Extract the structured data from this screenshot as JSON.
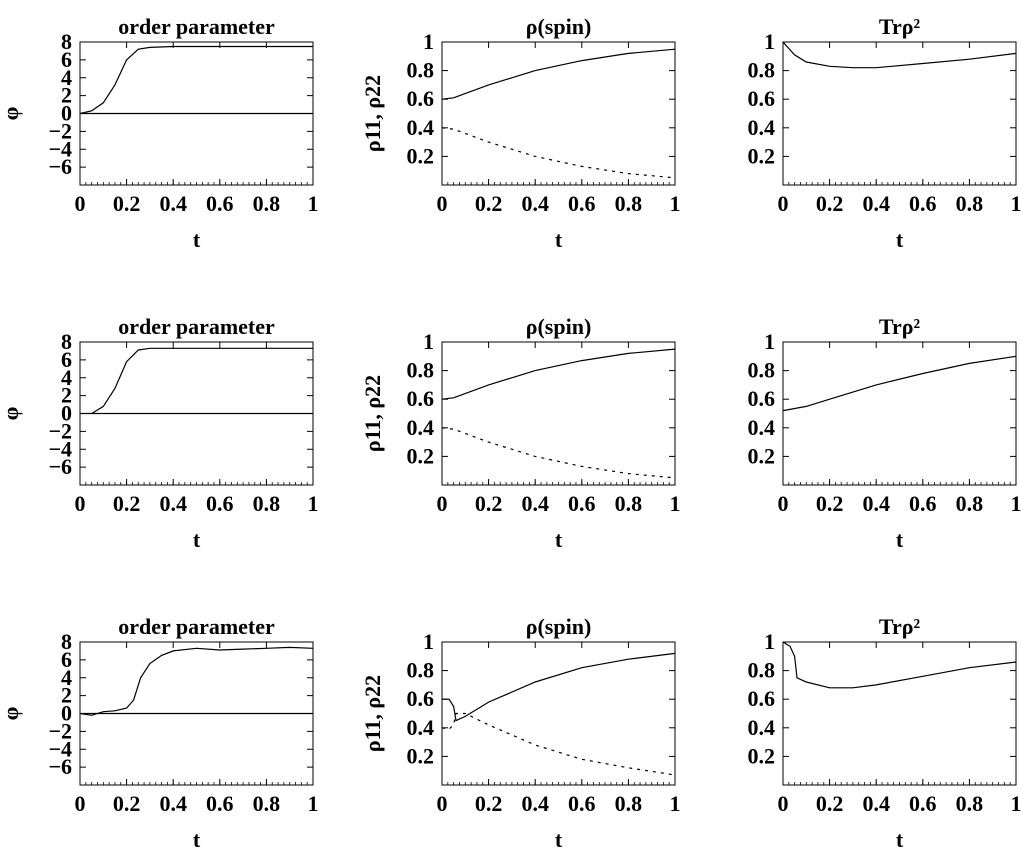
{
  "chart_data": [
    {
      "type": "line",
      "title": "order parameter",
      "xlabel": "t",
      "ylabel": "φ",
      "xlim": [
        0,
        1
      ],
      "ylim": [
        -8,
        8
      ],
      "grid": false,
      "xticks": [
        "0",
        "0.2",
        "0.4",
        "0.6",
        "0.8",
        "1"
      ],
      "yticks": [
        "8",
        "6",
        "4",
        "2",
        "0",
        "−2",
        "−4",
        "−6"
      ],
      "series": [
        {
          "style": "solid",
          "x": [
            0,
            0.05,
            0.1,
            0.15,
            0.2,
            0.25,
            0.3,
            0.4,
            1
          ],
          "y": [
            0,
            0.3,
            1.2,
            3.2,
            6.0,
            7.2,
            7.4,
            7.5,
            7.5
          ]
        },
        {
          "style": "solid",
          "x": [
            0,
            1
          ],
          "y": [
            0,
            0
          ]
        }
      ]
    },
    {
      "type": "line",
      "title": "ρ(spin)",
      "xlabel": "t",
      "ylabel": "ρ11, ρ22",
      "xlim": [
        0,
        1
      ],
      "ylim": [
        0,
        1
      ],
      "grid": false,
      "xticks": [
        "0",
        "0.2",
        "0.4",
        "0.6",
        "0.8",
        "1"
      ],
      "yticks": [
        "1",
        "0.8",
        "0.6",
        "0.4",
        "0.2"
      ],
      "series": [
        {
          "style": "solid",
          "x": [
            0,
            0.05,
            0.2,
            0.4,
            0.6,
            0.8,
            1
          ],
          "y": [
            0.6,
            0.61,
            0.7,
            0.8,
            0.87,
            0.92,
            0.95
          ]
        },
        {
          "style": "dashed",
          "x": [
            0,
            0.05,
            0.2,
            0.4,
            0.6,
            0.8,
            1
          ],
          "y": [
            0.4,
            0.39,
            0.3,
            0.2,
            0.13,
            0.08,
            0.05
          ]
        }
      ]
    },
    {
      "type": "line",
      "title": "Trρ²",
      "xlabel": "t",
      "ylabel": "",
      "xlim": [
        0,
        1
      ],
      "ylim": [
        0,
        1
      ],
      "grid": false,
      "xticks": [
        "0",
        "0.2",
        "0.4",
        "0.6",
        "0.8",
        "1"
      ],
      "yticks": [
        "1",
        "0.8",
        "0.6",
        "0.4",
        "0.2"
      ],
      "series": [
        {
          "style": "solid",
          "x": [
            0,
            0.05,
            0.1,
            0.2,
            0.3,
            0.4,
            0.6,
            0.8,
            1
          ],
          "y": [
            1.0,
            0.91,
            0.86,
            0.83,
            0.82,
            0.82,
            0.85,
            0.88,
            0.92
          ]
        }
      ]
    },
    {
      "type": "line",
      "title": "order parameter",
      "xlabel": "t",
      "ylabel": "φ",
      "xlim": [
        0,
        1
      ],
      "ylim": [
        -8,
        8
      ],
      "grid": false,
      "xticks": [
        "0",
        "0.2",
        "0.4",
        "0.6",
        "0.8",
        "1"
      ],
      "yticks": [
        "8",
        "6",
        "4",
        "2",
        "0",
        "−2",
        "−4",
        "−6"
      ],
      "series": [
        {
          "style": "solid",
          "x": [
            0.05,
            0.1,
            0.15,
            0.2,
            0.25,
            0.3,
            0.4,
            1
          ],
          "y": [
            0,
            0.8,
            2.8,
            5.8,
            7.1,
            7.3,
            7.3,
            7.3
          ]
        },
        {
          "style": "solid",
          "x": [
            0,
            1
          ],
          "y": [
            0,
            0
          ]
        }
      ]
    },
    {
      "type": "line",
      "title": "ρ(spin)",
      "xlabel": "t",
      "ylabel": "ρ11, ρ22",
      "xlim": [
        0,
        1
      ],
      "ylim": [
        0,
        1
      ],
      "grid": false,
      "xticks": [
        "0",
        "0.2",
        "0.4",
        "0.6",
        "0.8",
        "1"
      ],
      "yticks": [
        "1",
        "0.8",
        "0.6",
        "0.4",
        "0.2"
      ],
      "series": [
        {
          "style": "solid",
          "x": [
            0,
            0.05,
            0.2,
            0.4,
            0.6,
            0.8,
            1
          ],
          "y": [
            0.6,
            0.61,
            0.7,
            0.8,
            0.87,
            0.92,
            0.95
          ]
        },
        {
          "style": "dashed",
          "x": [
            0,
            0.05,
            0.2,
            0.4,
            0.6,
            0.8,
            1
          ],
          "y": [
            0.4,
            0.39,
            0.3,
            0.2,
            0.13,
            0.08,
            0.05
          ]
        }
      ]
    },
    {
      "type": "line",
      "title": "Trρ²",
      "xlabel": "t",
      "ylabel": "",
      "xlim": [
        0,
        1
      ],
      "ylim": [
        0,
        1
      ],
      "grid": false,
      "xticks": [
        "0",
        "0.2",
        "0.4",
        "0.6",
        "0.8",
        "1"
      ],
      "yticks": [
        "1",
        "0.8",
        "0.6",
        "0.4",
        "0.2"
      ],
      "series": [
        {
          "style": "solid",
          "x": [
            0,
            0.1,
            0.2,
            0.4,
            0.6,
            0.8,
            1
          ],
          "y": [
            0.52,
            0.55,
            0.6,
            0.7,
            0.78,
            0.85,
            0.9
          ]
        }
      ]
    },
    {
      "type": "line",
      "title": "order parameter",
      "xlabel": "t",
      "ylabel": "φ",
      "xlim": [
        0,
        1
      ],
      "ylim": [
        -8,
        8
      ],
      "grid": false,
      "xticks": [
        "0",
        "0.2",
        "0.4",
        "0.6",
        "0.8",
        "1"
      ],
      "yticks": [
        "8",
        "6",
        "4",
        "2",
        "0",
        "−2",
        "−4",
        "−6"
      ],
      "series": [
        {
          "style": "solid",
          "x": [
            0,
            0.05,
            0.1,
            0.15,
            0.2,
            0.23,
            0.26,
            0.3,
            0.35,
            0.4,
            0.5,
            0.6,
            0.7,
            0.8,
            0.9,
            1
          ],
          "y": [
            0,
            -0.2,
            0.2,
            0.3,
            0.6,
            1.5,
            4.0,
            5.6,
            6.5,
            7.0,
            7.3,
            7.1,
            7.2,
            7.3,
            7.4,
            7.3
          ]
        },
        {
          "style": "solid",
          "x": [
            0,
            1
          ],
          "y": [
            0,
            0
          ]
        }
      ]
    },
    {
      "type": "line",
      "title": "ρ(spin)",
      "xlabel": "t",
      "ylabel": "ρ11, ρ22",
      "xlim": [
        0,
        1
      ],
      "ylim": [
        0,
        1
      ],
      "grid": false,
      "xticks": [
        "0",
        "0.2",
        "0.4",
        "0.6",
        "0.8",
        "1"
      ],
      "yticks": [
        "1",
        "0.8",
        "0.6",
        "0.4",
        "0.2"
      ],
      "series": [
        {
          "style": "solid",
          "x": [
            0,
            0.03,
            0.05,
            0.06,
            0.1,
            0.2,
            0.4,
            0.6,
            0.8,
            1
          ],
          "y": [
            0.6,
            0.6,
            0.55,
            0.45,
            0.48,
            0.58,
            0.72,
            0.82,
            0.88,
            0.92
          ]
        },
        {
          "style": "dashed",
          "x": [
            0,
            0.03,
            0.05,
            0.06,
            0.1,
            0.2,
            0.4,
            0.6,
            0.8,
            1
          ],
          "y": [
            0.4,
            0.39,
            0.42,
            0.5,
            0.5,
            0.42,
            0.28,
            0.18,
            0.12,
            0.07
          ]
        }
      ]
    },
    {
      "type": "line",
      "title": "Trρ²",
      "xlabel": "t",
      "ylabel": "",
      "xlim": [
        0,
        1
      ],
      "ylim": [
        0,
        1
      ],
      "grid": false,
      "xticks": [
        "0",
        "0.2",
        "0.4",
        "0.6",
        "0.8",
        "1"
      ],
      "yticks": [
        "1",
        "0.8",
        "0.6",
        "0.4",
        "0.2"
      ],
      "series": [
        {
          "style": "solid",
          "x": [
            0,
            0.03,
            0.05,
            0.06,
            0.1,
            0.2,
            0.3,
            0.4,
            0.6,
            0.8,
            1
          ],
          "y": [
            1.0,
            0.97,
            0.9,
            0.75,
            0.72,
            0.68,
            0.68,
            0.7,
            0.76,
            0.82,
            0.86
          ]
        }
      ]
    }
  ]
}
